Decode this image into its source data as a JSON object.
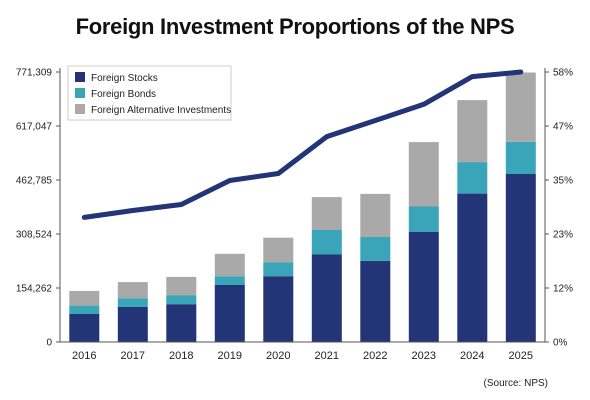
{
  "title": "Foreign Investment Proportions of the NPS",
  "source": "(Source: NPS)",
  "colors": {
    "foreign_stocks": "#233477",
    "foreign_bonds": "#3aa5b8",
    "foreign_alternative": "#a9a9a9",
    "proportion_line": "#233477",
    "axis": "#555555"
  },
  "chart_data": {
    "type": "bar",
    "stacked": true,
    "categories": [
      "2016",
      "2017",
      "2018",
      "2019",
      "2020",
      "2021",
      "2022",
      "2023",
      "2024",
      "2025"
    ],
    "series": [
      {
        "name": "Foreign Stocks",
        "values": [
          80000,
          100000,
          108000,
          163000,
          188000,
          250000,
          232000,
          315000,
          424000,
          480000
        ]
      },
      {
        "name": "Foreign Bonds",
        "values": [
          24000,
          25000,
          25000,
          25000,
          40000,
          70000,
          68000,
          72000,
          90000,
          92000
        ]
      },
      {
        "name": "Foreign Alternative Investments",
        "values": [
          42000,
          46000,
          53000,
          64000,
          70000,
          94000,
          123000,
          184000,
          177000,
          198000
        ]
      }
    ],
    "line_series": {
      "values": [
        27,
        28.5,
        29.8,
        35,
        36.5,
        44.5,
        48,
        51.5,
        57.5,
        58.5
      ]
    },
    "y_left_ticks": [
      "0",
      "154,262",
      "308,524",
      "462,785",
      "617,047",
      "771,309"
    ],
    "y_right_ticks": [
      "0%",
      "12%",
      "23%",
      "35%",
      "47%",
      "58%"
    ],
    "ylim": [
      0,
      771309
    ],
    "y2lim": [
      0,
      58.5
    ],
    "legend_position": "top-left",
    "grid": false
  }
}
